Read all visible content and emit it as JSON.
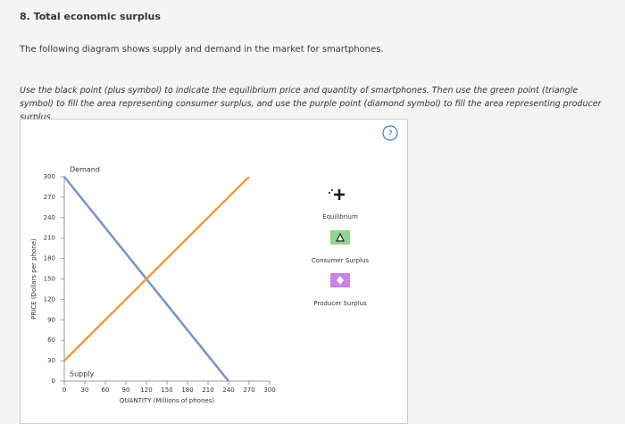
{
  "header": {
    "title": "8. Total economic surplus",
    "intro": "The following diagram shows supply and demand in the market for smartphones.",
    "instructions": "Use the black point (plus symbol) to indicate the equilibrium price and quantity of smartphones. Then use the green point (triangle symbol) to fill the area representing consumer surplus, and use the purple point (diamond symbol) to fill the area representing producer surplus."
  },
  "chart_data": {
    "type": "line",
    "xlabel": "QUANTITY (Millions of phones)",
    "ylabel": "PRICE (Dollars per phone)",
    "xlim": [
      0,
      300
    ],
    "ylim": [
      0,
      300
    ],
    "xticks": [
      0,
      30,
      60,
      90,
      120,
      150,
      180,
      210,
      240,
      270,
      300
    ],
    "yticks": [
      0,
      30,
      60,
      90,
      120,
      150,
      180,
      210,
      240,
      270,
      300
    ],
    "series": [
      {
        "name": "Demand",
        "color": "#7892c9",
        "x": [
          0,
          240
        ],
        "values": [
          300,
          0
        ]
      },
      {
        "name": "Supply",
        "color": "#f39a3c",
        "x": [
          0,
          270
        ],
        "values": [
          30,
          300
        ]
      }
    ],
    "tools": [
      "Equilibrium",
      "Consumer Surplus",
      "Producer Surplus"
    ]
  }
}
